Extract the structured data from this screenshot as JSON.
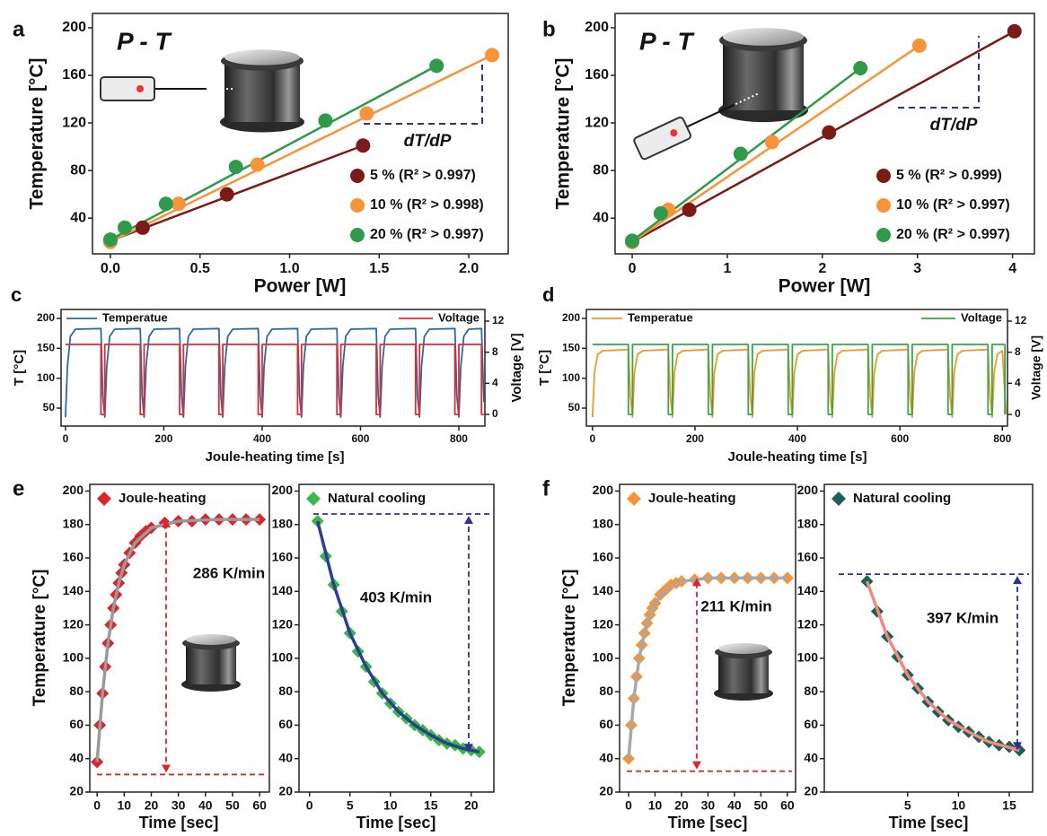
{
  "chart_data": [
    {
      "type": "scatter",
      "panel": "a",
      "title": "P - T",
      "annotation": "dT/dP",
      "annotation_color": "#2e3192",
      "xlabel": "Power [W]",
      "ylabel": "Temperature [°C]",
      "xlim": [
        -0.1,
        2.22
      ],
      "ylim": [
        10,
        212
      ],
      "xticks": [
        {
          "value": 0,
          "label": "0.0"
        },
        0.5,
        {
          "value": 1,
          "label": "1.0"
        },
        1.5,
        {
          "value": 2,
          "label": "2.0"
        }
      ],
      "yticks": [
        40,
        80,
        120,
        160,
        200
      ],
      "legend": "lower right",
      "fit_line": true,
      "marker": "circle",
      "series": [
        {
          "name": "5 % (R² > 0.997)",
          "color": "#7a1b17",
          "x": [
            0,
            0.18,
            0.65,
            1.41
          ],
          "values": [
            21,
            32,
            60,
            101
          ]
        },
        {
          "name": "10 % (R² > 0.998)",
          "color": "#f7943a",
          "x": [
            0,
            0.38,
            0.82,
            1.43,
            2.13
          ],
          "values": [
            20,
            52,
            85,
            128,
            177
          ]
        },
        {
          "name": "20 % (R² > 0.997)",
          "color": "#2f9a4a",
          "x": [
            0,
            0.08,
            0.31,
            0.7,
            1.2,
            1.82
          ],
          "values": [
            22,
            32,
            52,
            83,
            122,
            168
          ]
        }
      ]
    },
    {
      "type": "scatter",
      "panel": "b",
      "title": "P - T",
      "annotation": "dT/dP",
      "annotation_color": "#2e3192",
      "xlabel": "Power [W]",
      "ylabel": "Temperature [°C]",
      "xlim": [
        -0.18,
        4.23
      ],
      "ylim": [
        10,
        212
      ],
      "xticks": [
        0,
        1,
        2,
        3,
        4
      ],
      "yticks": [
        40,
        80,
        120,
        160,
        200
      ],
      "legend": "lower right",
      "fit_line": true,
      "marker": "circle",
      "series": [
        {
          "name": "5 % (R² > 0.999)",
          "color": "#7a1b17",
          "x": [
            0,
            0.6,
            2.07,
            4.02
          ],
          "values": [
            20,
            47,
            112,
            197
          ]
        },
        {
          "name": "10 % (R² > 0.997)",
          "color": "#f7943a",
          "x": [
            0,
            0.38,
            1.47,
            3.02
          ],
          "values": [
            20,
            47,
            104,
            185
          ]
        },
        {
          "name": "20 % (R² > 0.997)",
          "color": "#2f9a4a",
          "x": [
            0,
            0.3,
            1.14,
            2.4
          ],
          "values": [
            21,
            44,
            94,
            166
          ]
        }
      ]
    },
    {
      "type": "line",
      "panel": "c",
      "xlabel": "Joule-heating time [s]",
      "ylabel": "T [°C]",
      "y2label": "Voltage [V]",
      "xlim": [
        -9,
        853
      ],
      "ylim": [
        20,
        215
      ],
      "y2lim": [
        -1.5,
        13.5
      ],
      "xticks": [
        0,
        200,
        400,
        600,
        800
      ],
      "yticks": [
        50,
        100,
        150,
        200
      ],
      "y2ticks": [
        0,
        4,
        8,
        12
      ],
      "legend": "upper",
      "series": [
        {
          "name": "Temperatue",
          "color": "#2a6aa0",
          "x": [
            0,
            4,
            10,
            20,
            72,
            76,
            80,
            84,
            90,
            100,
            152,
            156,
            160,
            164,
            170,
            180,
            232,
            236,
            240,
            244,
            250,
            260,
            312,
            316,
            320,
            324,
            330,
            340,
            392,
            396,
            400,
            404,
            410,
            420,
            472,
            476,
            480,
            484,
            490,
            500,
            552,
            556,
            560,
            564,
            570,
            580,
            632,
            636,
            640,
            644,
            650,
            660,
            712,
            716,
            720,
            724,
            730,
            740,
            792,
            796,
            800,
            804,
            810,
            820,
            846,
            851
          ],
          "values": [
            35,
            120,
            170,
            182,
            183,
            70,
            35,
            120,
            170,
            182,
            183,
            70,
            35,
            120,
            170,
            182,
            183,
            70,
            35,
            120,
            170,
            182,
            183,
            70,
            35,
            120,
            170,
            182,
            183,
            70,
            35,
            120,
            170,
            182,
            183,
            70,
            35,
            120,
            170,
            182,
            183,
            70,
            35,
            120,
            170,
            182,
            183,
            70,
            35,
            120,
            170,
            182,
            183,
            70,
            35,
            120,
            170,
            182,
            183,
            70,
            35,
            120,
            170,
            182,
            183,
            60
          ]
        },
        {
          "name": "Voltage",
          "color": "#e8282b",
          "axis": "y2",
          "x": [
            0,
            72,
            72,
            80,
            80,
            152,
            152,
            160,
            160,
            232,
            232,
            240,
            240,
            312,
            312,
            320,
            320,
            392,
            392,
            400,
            400,
            472,
            472,
            480,
            480,
            552,
            552,
            560,
            560,
            632,
            632,
            640,
            640,
            712,
            712,
            720,
            720,
            792,
            792,
            800,
            800,
            846,
            846,
            851
          ],
          "values": [
            9,
            9,
            0,
            0,
            9,
            9,
            0,
            0,
            9,
            9,
            0,
            0,
            9,
            9,
            0,
            0,
            9,
            9,
            0,
            0,
            9,
            9,
            0,
            0,
            9,
            9,
            0,
            0,
            9,
            9,
            0,
            0,
            9,
            9,
            0,
            0,
            9,
            9,
            0,
            0,
            9,
            9,
            0,
            0
          ]
        }
      ]
    },
    {
      "type": "line",
      "panel": "d",
      "xlabel": "Joule-heating time [s]",
      "ylabel": "T [°C]",
      "y2label": "Voltage [V]",
      "xlim": [
        -12,
        810
      ],
      "ylim": [
        20,
        215
      ],
      "y2lim": [
        -1.5,
        13.5
      ],
      "xticks": [
        0,
        200,
        400,
        600,
        800
      ],
      "yticks": [
        50,
        100,
        150,
        200
      ],
      "y2ticks": [
        0,
        4,
        8,
        12
      ],
      "legend": "upper",
      "series": [
        {
          "name": "Temperatue",
          "color": "#f5962c",
          "x": [
            0,
            4,
            10,
            20,
            70,
            74,
            78,
            82,
            88,
            98,
            148,
            152,
            156,
            160,
            166,
            176,
            226,
            230,
            234,
            238,
            244,
            254,
            304,
            308,
            312,
            316,
            322,
            332,
            382,
            386,
            390,
            394,
            400,
            410,
            460,
            464,
            468,
            472,
            478,
            488,
            538,
            542,
            546,
            550,
            556,
            566,
            616,
            620,
            624,
            628,
            634,
            644,
            694,
            698,
            702,
            706,
            712,
            722,
            772,
            776,
            780,
            784,
            790,
            800,
            807
          ],
          "values": [
            35,
            110,
            140,
            146,
            148,
            70,
            35,
            110,
            140,
            146,
            148,
            70,
            35,
            110,
            140,
            146,
            148,
            70,
            35,
            110,
            140,
            146,
            148,
            70,
            35,
            110,
            140,
            146,
            148,
            70,
            35,
            110,
            140,
            146,
            148,
            70,
            35,
            110,
            140,
            146,
            148,
            70,
            35,
            110,
            140,
            146,
            148,
            70,
            35,
            110,
            140,
            146,
            148,
            70,
            35,
            110,
            140,
            146,
            148,
            70,
            35,
            110,
            140,
            146,
            40
          ]
        },
        {
          "name": "Voltage",
          "color": "#36a84a",
          "axis": "y2",
          "x": [
            0,
            70,
            70,
            78,
            78,
            148,
            148,
            156,
            156,
            226,
            226,
            234,
            234,
            304,
            304,
            312,
            312,
            382,
            382,
            390,
            390,
            460,
            460,
            468,
            468,
            538,
            538,
            546,
            546,
            616,
            616,
            624,
            624,
            694,
            694,
            702,
            702,
            772,
            772,
            780,
            780,
            805,
            805
          ],
          "values": [
            9,
            9,
            0,
            0,
            9,
            9,
            0,
            0,
            9,
            9,
            0,
            0,
            9,
            9,
            0,
            0,
            9,
            9,
            0,
            0,
            9,
            9,
            0,
            0,
            9,
            9,
            0,
            0,
            9,
            9,
            0,
            0,
            9,
            9,
            0,
            0,
            9,
            9,
            0,
            0,
            9,
            9,
            0
          ]
        }
      ]
    },
    {
      "type": "scatter",
      "panel": "e",
      "xlabel": "Time [sec]",
      "ylabel": "Temperature [°C]",
      "annotation": "286 K/min",
      "annotation_color": "#d9262c",
      "xlim": [
        -2.7,
        63.6
      ],
      "ylim": [
        20,
        204
      ],
      "xticks": [
        0,
        10,
        20,
        30,
        40,
        50,
        60
      ],
      "yticks": [
        20,
        40,
        60,
        80,
        100,
        120,
        140,
        160,
        180,
        200
      ],
      "legend": "upper left",
      "marker": "diamond",
      "series": [
        {
          "name": "Joule-heating",
          "color": "#d9262c",
          "x": [
            0,
            1,
            2,
            3,
            4,
            5,
            6,
            7,
            8,
            9,
            10,
            12,
            14,
            16,
            18,
            20,
            25,
            30,
            35,
            40,
            45,
            50,
            55,
            60
          ],
          "values": [
            38,
            60,
            79,
            95,
            109,
            120,
            130,
            138,
            145,
            151,
            156,
            163,
            169,
            173,
            176,
            178,
            181,
            182,
            182,
            183,
            183,
            183,
            183,
            183
          ]
        },
        {
          "color": "#9a9a9a",
          "marker": "none",
          "x": [
            0,
            2,
            4,
            6,
            8,
            10,
            14,
            20,
            30,
            45,
            60
          ],
          "values": [
            38,
            79,
            109,
            130,
            145,
            156,
            169,
            178,
            182,
            183,
            183
          ]
        }
      ]
    },
    {
      "type": "scatter",
      "xlabel": "Time [sec]",
      "annotation": "403 K/min",
      "annotation_color": "#2e3192",
      "xlim": [
        -1.3,
        22.8
      ],
      "ylim": [
        20,
        204
      ],
      "xticks": [
        0,
        5,
        10,
        15,
        20
      ],
      "yticks": [
        20,
        40,
        60,
        80,
        100,
        120,
        140,
        160,
        180,
        200
      ],
      "legend": "upper left",
      "marker": "diamond",
      "series": [
        {
          "name": "Natural cooling",
          "color": "#3cb54a",
          "x": [
            1,
            2,
            3,
            4,
            5,
            6,
            7,
            8,
            9,
            10,
            11,
            12,
            13,
            14,
            15,
            16,
            17,
            18,
            19,
            20,
            21
          ],
          "values": [
            182,
            161,
            144,
            128,
            115,
            104,
            95,
            86,
            79,
            73,
            68,
            64,
            60,
            57,
            54,
            51,
            49,
            48,
            46,
            45,
            44
          ]
        },
        {
          "color": "#2a3f8f",
          "marker": "none",
          "x": [
            1,
            3,
            5,
            7,
            9,
            11,
            13,
            15,
            17,
            19,
            21
          ],
          "values": [
            182,
            144,
            115,
            95,
            79,
            68,
            60,
            54,
            49,
            46,
            44
          ]
        }
      ]
    },
    {
      "type": "scatter",
      "panel": "f",
      "xlabel": "Time [sec]",
      "ylabel": "Temperature [°C]",
      "annotation": "211 K/min",
      "annotation_color": "#d9262c",
      "xlim": [
        -3.4,
        63.1
      ],
      "ylim": [
        20,
        204
      ],
      "xticks": [
        0,
        10,
        20,
        30,
        40,
        50,
        60
      ],
      "yticks": [
        20,
        40,
        60,
        80,
        100,
        120,
        140,
        160,
        180,
        200
      ],
      "legend": "upper left",
      "marker": "diamond",
      "series": [
        {
          "name": "Joule-heating",
          "color": "#f7943a",
          "x": [
            0,
            1,
            2,
            3,
            4,
            5,
            6,
            7,
            8,
            9,
            10,
            12,
            14,
            16,
            18,
            20,
            25,
            30,
            35,
            40,
            45,
            50,
            55,
            60
          ],
          "values": [
            40,
            60,
            76,
            89,
            100,
            108,
            115,
            121,
            126,
            130,
            133,
            138,
            141,
            144,
            145,
            146,
            147,
            148,
            148,
            148,
            148,
            148,
            148,
            148
          ]
        },
        {
          "color": "#a8a8a8",
          "marker": "none",
          "x": [
            0,
            2,
            4,
            6,
            8,
            10,
            14,
            20,
            30,
            45,
            60
          ],
          "values": [
            40,
            76,
            100,
            115,
            126,
            133,
            141,
            146,
            148,
            148,
            148
          ]
        }
      ]
    },
    {
      "type": "scatter",
      "xlabel": "Time [sec]",
      "annotation": "397 K/min",
      "annotation_color": "#2e3192",
      "xlim": [
        -3.2,
        17.3
      ],
      "ylim": [
        20,
        204
      ],
      "xticks": [
        5,
        10,
        15
      ],
      "yticks": [
        20,
        40,
        60,
        80,
        100,
        120,
        140,
        160,
        180,
        200
      ],
      "legend": "upper left",
      "marker": "diamond",
      "series": [
        {
          "name": "Natural cooling",
          "color": "#1d5e58",
          "x": [
            1,
            2,
            3,
            4,
            5,
            6,
            7,
            8,
            9,
            10,
            11,
            12,
            13,
            14,
            15,
            16
          ],
          "values": [
            146,
            128,
            113,
            101,
            90,
            82,
            74,
            68,
            63,
            59,
            56,
            53,
            50,
            48,
            47,
            45
          ]
        },
        {
          "color": "#f08a7e",
          "marker": "none",
          "x": [
            1,
            3,
            5,
            7,
            9,
            11,
            13,
            16
          ],
          "values": [
            146,
            113,
            90,
            74,
            63,
            56,
            50,
            45
          ]
        }
      ]
    }
  ]
}
